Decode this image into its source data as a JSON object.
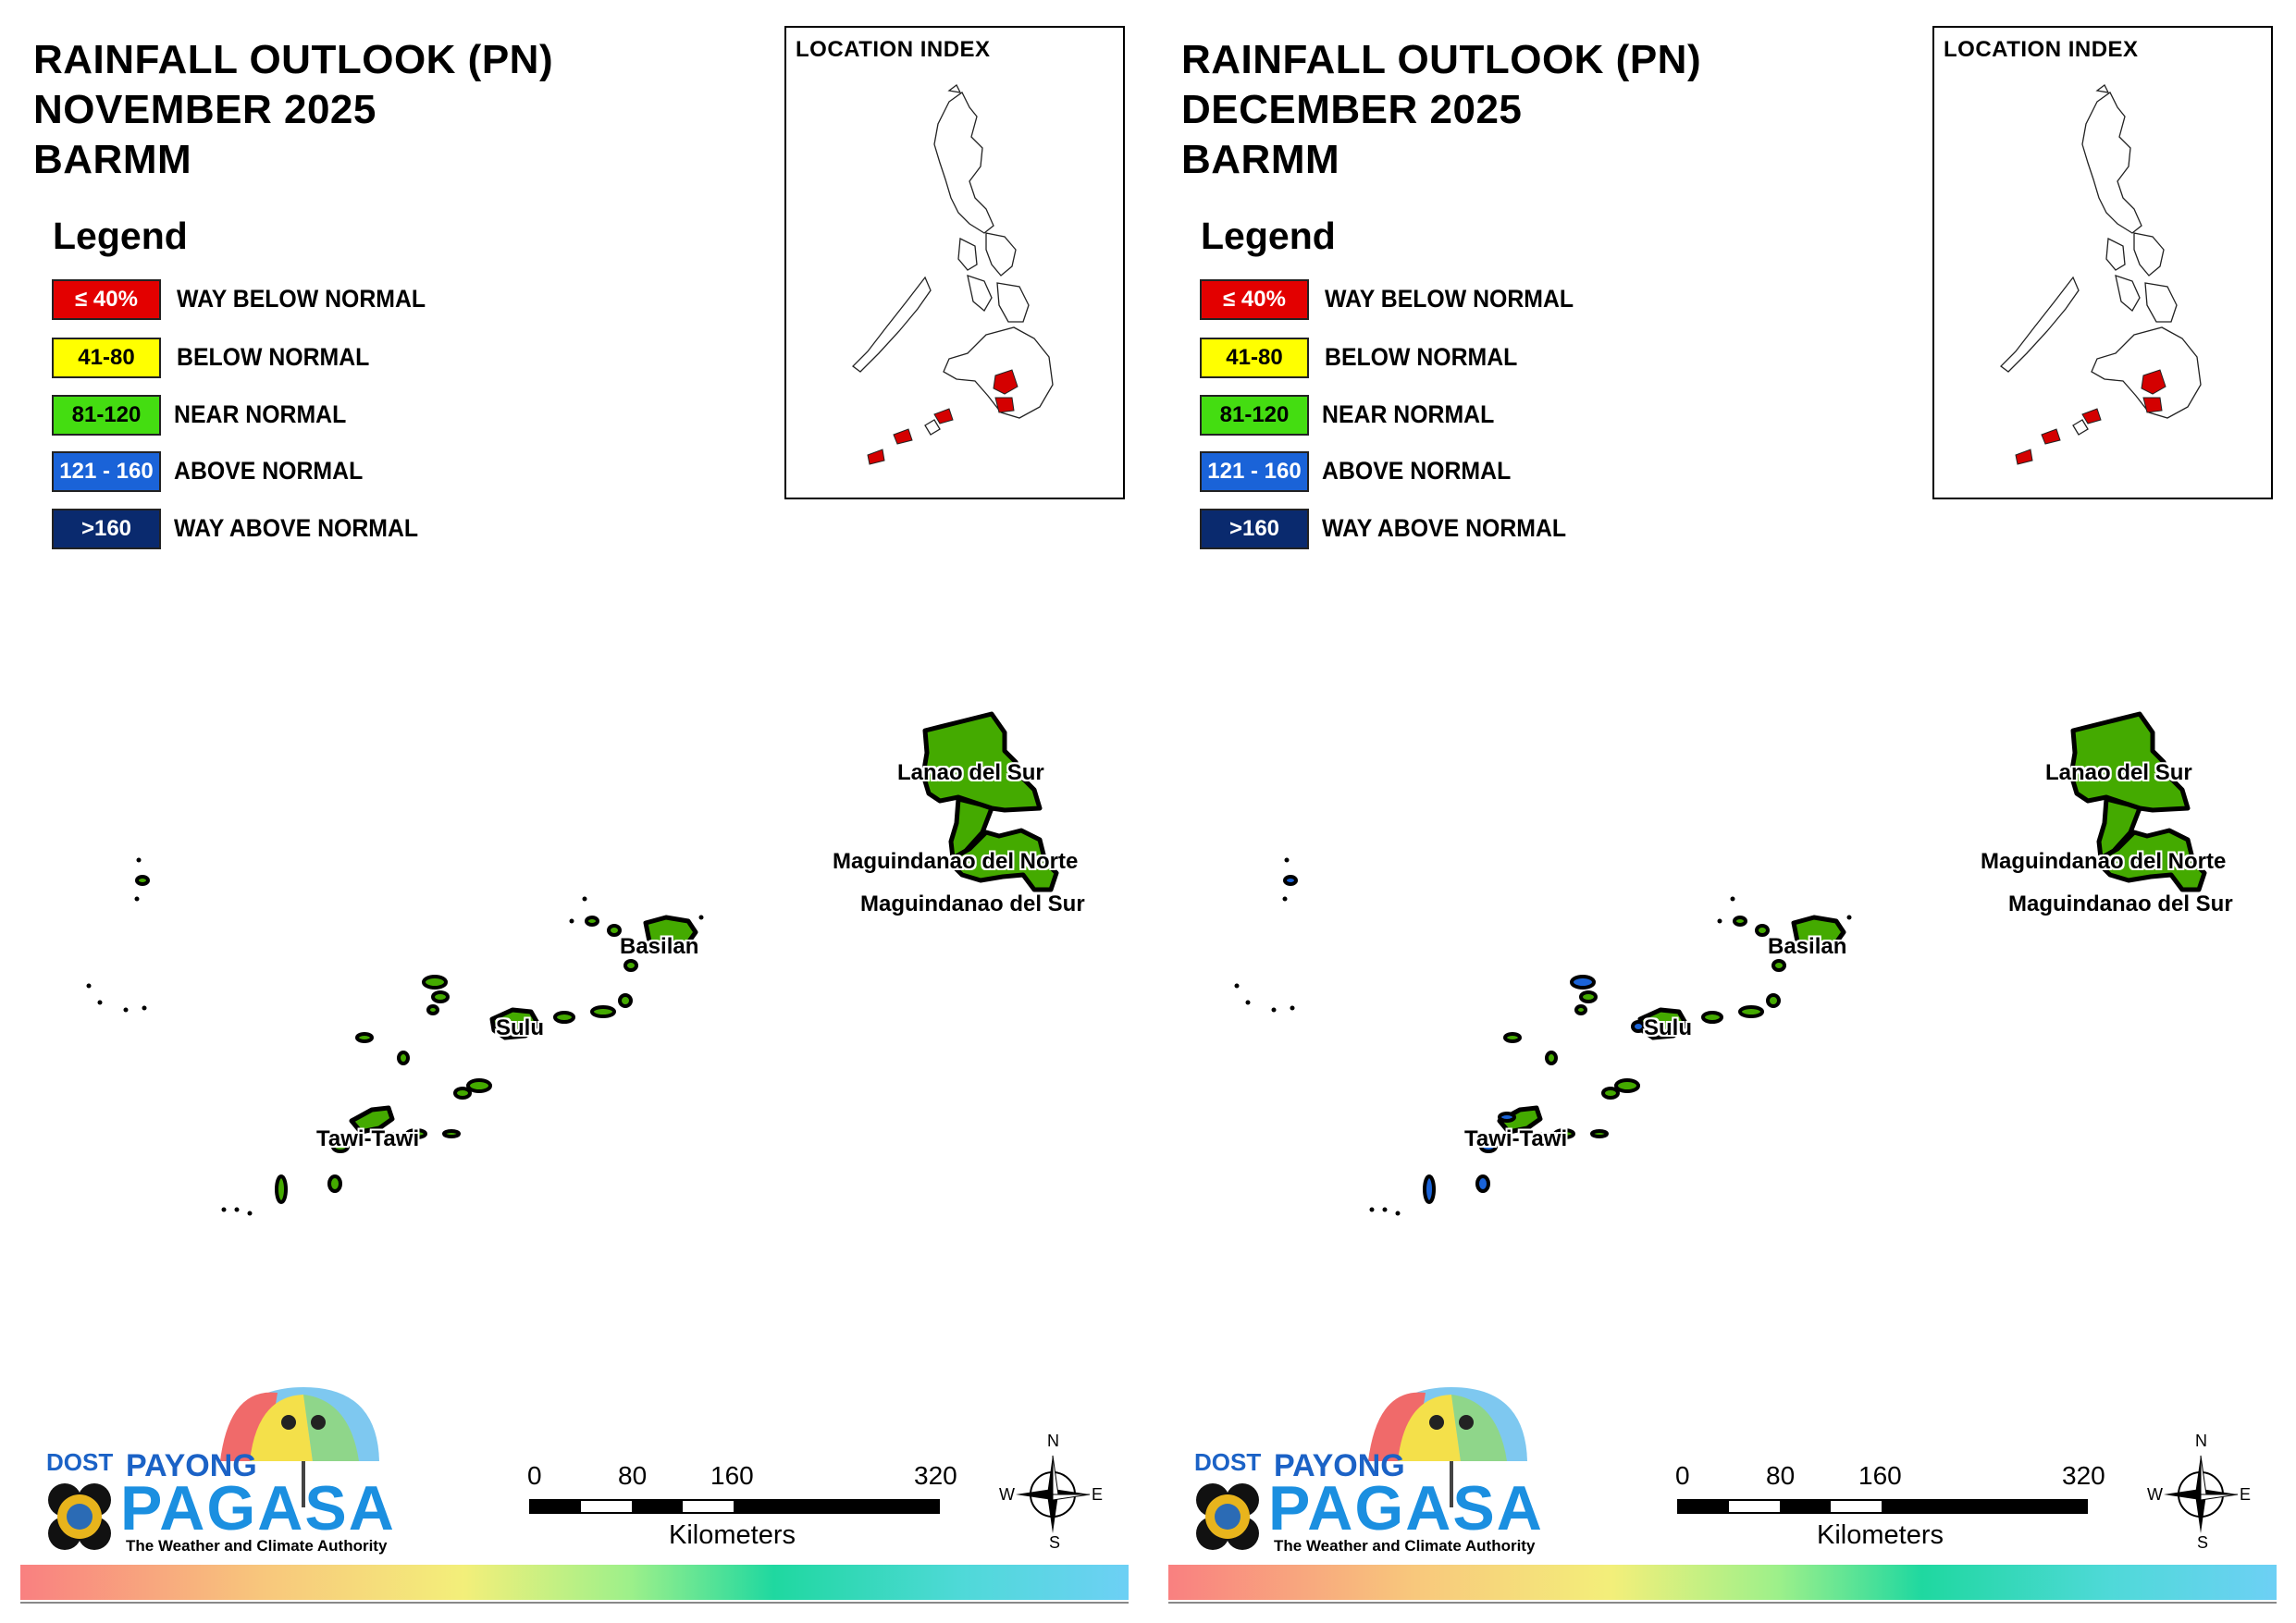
{
  "panels": [
    {
      "title_line1": "RAINFALL OUTLOOK (PN)",
      "title_line2": "NOVEMBER 2025",
      "title_line3": "BARMM",
      "legend_title": "Legend",
      "legend": [
        {
          "range": "≤ 40%",
          "label": "WAY BELOW NORMAL",
          "color": "#e30000",
          "text_color": "#ffffff"
        },
        {
          "range": "41-80",
          "label": "BELOW NORMAL",
          "color": "#ffff00",
          "text_color": "#000000"
        },
        {
          "range": "81-120",
          "label": "NEAR NORMAL",
          "color": "#44dd11",
          "text_color": "#000000"
        },
        {
          "range": "121 - 160",
          "label": "ABOVE NORMAL",
          "color": "#1a63d8",
          "text_color": "#ffffff"
        },
        {
          "range": ">160",
          "label": "WAY ABOVE NORMAL",
          "color": "#0a2a6e",
          "text_color": "#ffffff"
        }
      ],
      "inset_title": "LOCATION INDEX",
      "provinces": {
        "lanao_del_sur": "Lanao del Sur",
        "maguindanao_del_norte": "Maguindanao del Norte",
        "maguindanao_del_sur": "Maguindanao del Sur",
        "basilan": "Basilan",
        "sulu": "Sulu",
        "tawi_tawi": "Tawi-Tawi"
      },
      "province_category": {
        "lanao_del_sur": "NEAR NORMAL",
        "maguindanao_del_norte": "NEAR NORMAL",
        "maguindanao_del_sur": "NEAR NORMAL",
        "basilan": "NEAR NORMAL",
        "sulu": "NEAR NORMAL",
        "tawi_tawi": "NEAR NORMAL"
      },
      "scale": {
        "ticks": [
          "0",
          "80",
          "160",
          "320"
        ],
        "unit": "Kilometers"
      },
      "compass": {
        "n": "N",
        "s": "S",
        "e": "E",
        "w": "W"
      },
      "logo": {
        "agency_prefix": "DOST",
        "name_top": "PAYONG",
        "name_main": "PAGASA",
        "tagline": "The Weather and Climate Authority"
      }
    },
    {
      "title_line1": "RAINFALL OUTLOOK (PN)",
      "title_line2": "DECEMBER 2025",
      "title_line3": "BARMM",
      "legend_title": "Legend",
      "legend": [
        {
          "range": "≤ 40%",
          "label": "WAY BELOW NORMAL",
          "color": "#e30000",
          "text_color": "#ffffff"
        },
        {
          "range": "41-80",
          "label": "BELOW NORMAL",
          "color": "#ffff00",
          "text_color": "#000000"
        },
        {
          "range": "81-120",
          "label": "NEAR NORMAL",
          "color": "#44dd11",
          "text_color": "#000000"
        },
        {
          "range": "121 - 160",
          "label": "ABOVE NORMAL",
          "color": "#1a63d8",
          "text_color": "#ffffff"
        },
        {
          "range": ">160",
          "label": "WAY ABOVE NORMAL",
          "color": "#0a2a6e",
          "text_color": "#ffffff"
        }
      ],
      "inset_title": "LOCATION INDEX",
      "provinces": {
        "lanao_del_sur": "Lanao del Sur",
        "maguindanao_del_norte": "Maguindanao del Norte",
        "maguindanao_del_sur": "Maguindanao del Sur",
        "basilan": "Basilan",
        "sulu": "Sulu",
        "tawi_tawi": "Tawi-Tawi"
      },
      "province_category": {
        "lanao_del_sur": "NEAR NORMAL",
        "maguindanao_del_norte": "NEAR NORMAL",
        "maguindanao_del_sur": "NEAR NORMAL",
        "basilan": "NEAR NORMAL",
        "sulu": "NEAR NORMAL",
        "tawi_tawi": "NEAR NORMAL"
      },
      "scale": {
        "ticks": [
          "0",
          "80",
          "160",
          "320"
        ],
        "unit": "Kilometers"
      },
      "compass": {
        "n": "N",
        "s": "S",
        "e": "E",
        "w": "W"
      },
      "logo": {
        "agency_prefix": "DOST",
        "name_top": "PAYONG",
        "name_main": "PAGASA",
        "tagline": "The Weather and Climate Authority"
      }
    }
  ],
  "colors": {
    "near_normal": "#44dd11",
    "above_normal": "#1a63d8",
    "inset_highlight": "#d40000"
  }
}
